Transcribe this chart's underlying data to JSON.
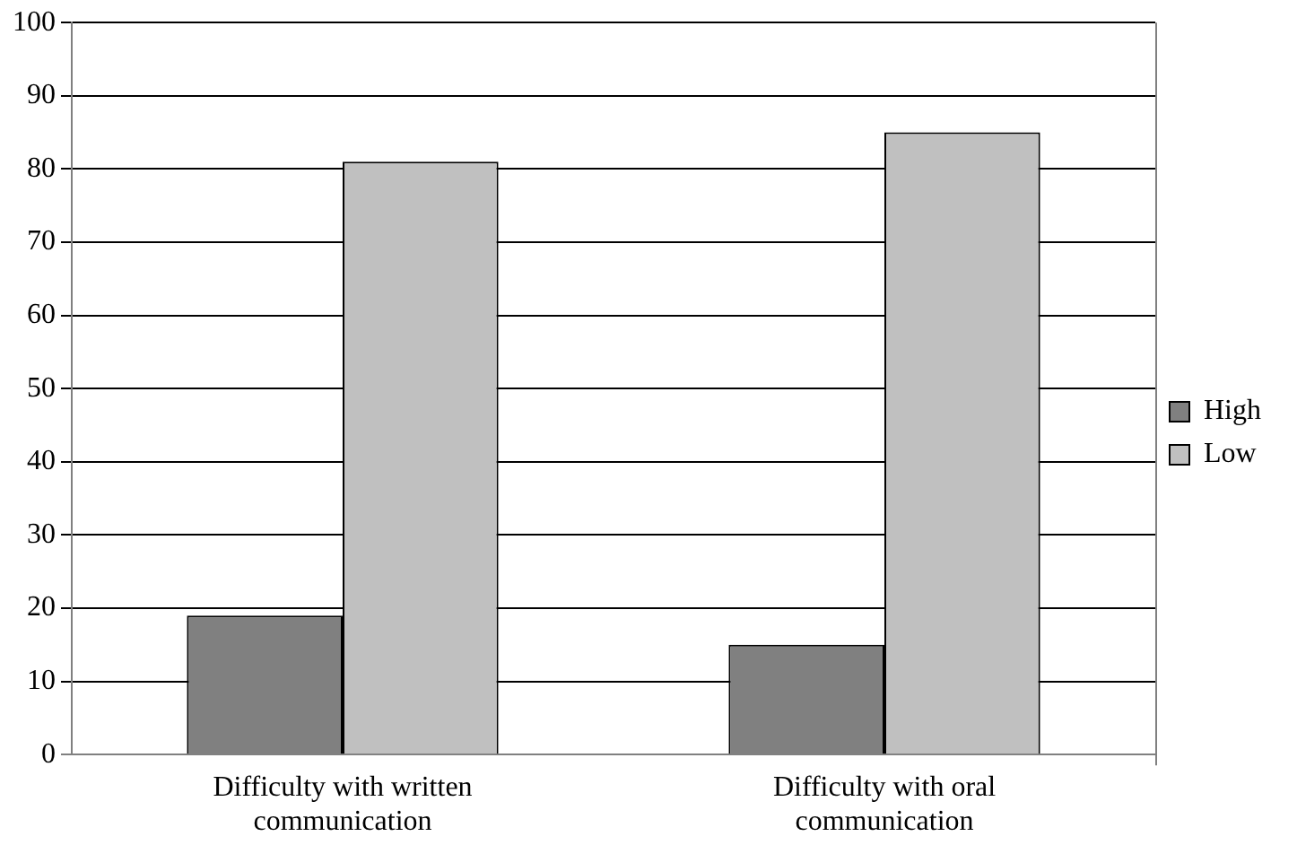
{
  "chart_data": {
    "type": "bar",
    "categories": [
      "Difficulty with written communication",
      "Difficulty with oral communication"
    ],
    "series": [
      {
        "name": "High",
        "color": "#808080",
        "values": [
          19,
          15
        ]
      },
      {
        "name": "Low",
        "color": "#c0c0c0",
        "values": [
          81,
          85
        ]
      }
    ],
    "ylim": [
      0,
      100
    ],
    "yticks": [
      0,
      10,
      20,
      30,
      40,
      50,
      60,
      70,
      80,
      90,
      100
    ],
    "grid": "y",
    "legend": "right"
  }
}
